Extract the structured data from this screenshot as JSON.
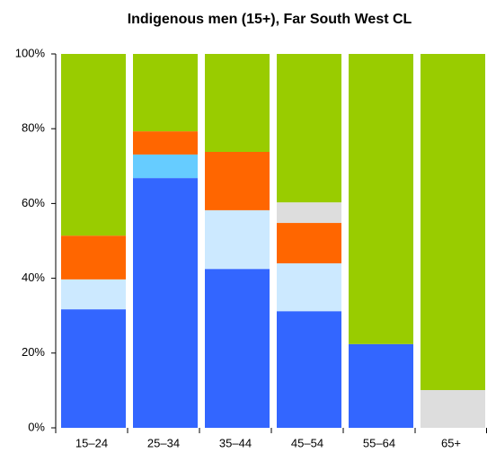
{
  "chart_data": {
    "type": "stacked_bar",
    "title": "Indigenous men (15+), Far South West CL",
    "categories": [
      "15–24",
      "25–34",
      "35–44",
      "45–54",
      "55–64",
      "65+"
    ],
    "series": [
      {
        "color": "#3366ff",
        "values": [
          31.7,
          66.8,
          42.5,
          31.2,
          22.4,
          0
        ]
      },
      {
        "color": "#66ccff",
        "values": [
          0,
          6.3,
          0,
          0,
          0,
          0
        ]
      },
      {
        "color": "#cce9ff",
        "values": [
          8,
          0,
          15.7,
          12.8,
          0,
          0
        ]
      },
      {
        "color": "#ff6600",
        "values": [
          11.7,
          6.2,
          15.6,
          10.8,
          0,
          0
        ]
      },
      {
        "color": "#dddddd",
        "values": [
          0,
          0,
          0,
          5.5,
          0,
          10.1
        ]
      },
      {
        "color": "#99cc00",
        "values": [
          48.6,
          20.7,
          26.2,
          39.7,
          77.6,
          89.9
        ]
      }
    ],
    "ylim": [
      0,
      100
    ],
    "yticks": [
      {
        "value": 0,
        "label": "0%"
      },
      {
        "value": 20,
        "label": "20%"
      },
      {
        "value": 40,
        "label": "40%"
      },
      {
        "value": 60,
        "label": "60%"
      },
      {
        "value": 80,
        "label": "80%"
      },
      {
        "value": 100,
        "label": "100%"
      }
    ],
    "grid": false
  }
}
